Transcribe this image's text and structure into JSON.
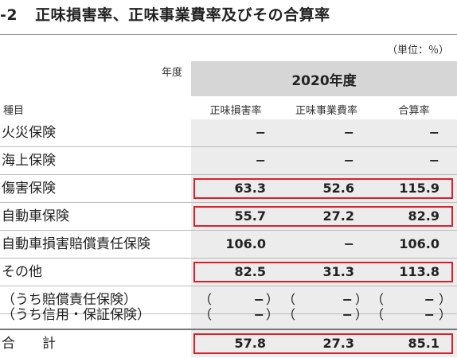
{
  "title": {
    "number": "-2",
    "text": "正味損害率、正味事業費率及びその合算率"
  },
  "unit": "（単位：％）",
  "header": {
    "year_label": "年度",
    "category_label": "種目",
    "year": "2020年度",
    "columns": [
      "正味損害率",
      "正味事業費率",
      "合算率"
    ]
  },
  "rows": [
    {
      "label": "火災保険",
      "values": [
        "−",
        "−",
        "−"
      ]
    },
    {
      "label": "海上保険",
      "values": [
        "−",
        "−",
        "−"
      ]
    },
    {
      "label": "傷害保険",
      "values": [
        "63.3",
        "52.6",
        "115.9"
      ]
    },
    {
      "label": "自動車保険",
      "values": [
        "55.7",
        "27.2",
        "82.9"
      ]
    },
    {
      "label": "自動車損害賠償責任保険",
      "values": [
        "106.0",
        "−",
        "106.0"
      ]
    },
    {
      "label": "その他",
      "values": [
        "82.5",
        "31.3",
        "113.8"
      ]
    },
    {
      "label": "（うち賠償責任保険）",
      "values": [
        "−",
        "−",
        "−"
      ]
    },
    {
      "label": "（うち信用・保証保険）",
      "values": [
        "−",
        "−",
        "−"
      ]
    },
    {
      "label": "合　　計",
      "values": [
        "57.8",
        "27.3",
        "85.1"
      ]
    }
  ],
  "paren_open": "（",
  "paren_close": "）"
}
